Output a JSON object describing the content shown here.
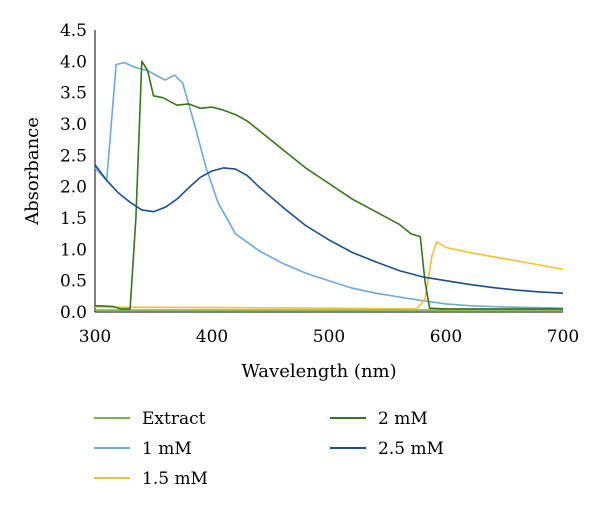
{
  "chart_data": {
    "type": "line",
    "title": "",
    "xlabel": "Wavelength (nm)",
    "ylabel": "Absorbance",
    "xlim": [
      300,
      700
    ],
    "ylim": [
      0,
      4.5
    ],
    "x_ticks": [
      300,
      400,
      500,
      600,
      700
    ],
    "y_ticks": [
      "0.0",
      "0.5",
      "1.0",
      "1.5",
      "2.0",
      "2.5",
      "3.0",
      "3.5",
      "4.0",
      "4.5"
    ],
    "grid": false,
    "legend_position": "bottom",
    "series": [
      {
        "name": "Extract",
        "color": "#7cb342",
        "points": [
          [
            300,
            0.03
          ],
          [
            400,
            0.03
          ],
          [
            500,
            0.03
          ],
          [
            600,
            0.03
          ],
          [
            700,
            0.03
          ]
        ]
      },
      {
        "name": "1 mM",
        "color": "#6fa8dc",
        "points": [
          [
            300,
            2.3
          ],
          [
            310,
            2.1
          ],
          [
            318,
            3.95
          ],
          [
            325,
            3.98
          ],
          [
            335,
            3.9
          ],
          [
            345,
            3.85
          ],
          [
            355,
            3.75
          ],
          [
            360,
            3.7
          ],
          [
            368,
            3.78
          ],
          [
            375,
            3.65
          ],
          [
            385,
            3.0
          ],
          [
            395,
            2.3
          ],
          [
            405,
            1.75
          ],
          [
            420,
            1.25
          ],
          [
            440,
            0.98
          ],
          [
            460,
            0.78
          ],
          [
            480,
            0.62
          ],
          [
            500,
            0.5
          ],
          [
            520,
            0.38
          ],
          [
            540,
            0.3
          ],
          [
            560,
            0.24
          ],
          [
            580,
            0.18
          ],
          [
            600,
            0.13
          ],
          [
            620,
            0.1
          ],
          [
            650,
            0.08
          ],
          [
            700,
            0.06
          ]
        ]
      },
      {
        "name": "1.5 mM",
        "color": "#f1c232",
        "points": [
          [
            300,
            0.08
          ],
          [
            400,
            0.07
          ],
          [
            500,
            0.06
          ],
          [
            575,
            0.05
          ],
          [
            582,
            0.2
          ],
          [
            588,
            0.9
          ],
          [
            592,
            1.12
          ],
          [
            600,
            1.03
          ],
          [
            620,
            0.95
          ],
          [
            650,
            0.85
          ],
          [
            680,
            0.75
          ],
          [
            700,
            0.68
          ]
        ]
      },
      {
        "name": "2 mM",
        "color": "#38761d",
        "points": [
          [
            300,
            0.1
          ],
          [
            315,
            0.09
          ],
          [
            322,
            0.05
          ],
          [
            330,
            0.05
          ],
          [
            335,
            1.5
          ],
          [
            340,
            4.0
          ],
          [
            345,
            3.85
          ],
          [
            350,
            3.45
          ],
          [
            358,
            3.42
          ],
          [
            365,
            3.35
          ],
          [
            370,
            3.3
          ],
          [
            380,
            3.32
          ],
          [
            390,
            3.25
          ],
          [
            400,
            3.27
          ],
          [
            410,
            3.22
          ],
          [
            420,
            3.15
          ],
          [
            430,
            3.05
          ],
          [
            440,
            2.9
          ],
          [
            460,
            2.6
          ],
          [
            480,
            2.3
          ],
          [
            500,
            2.05
          ],
          [
            520,
            1.8
          ],
          [
            540,
            1.6
          ],
          [
            560,
            1.4
          ],
          [
            570,
            1.25
          ],
          [
            578,
            1.2
          ],
          [
            582,
            0.5
          ],
          [
            586,
            0.06
          ],
          [
            600,
            0.05
          ],
          [
            650,
            0.05
          ],
          [
            700,
            0.05
          ]
        ]
      },
      {
        "name": "2.5 mM",
        "color": "#1c4f8a",
        "points": [
          [
            300,
            2.35
          ],
          [
            310,
            2.1
          ],
          [
            320,
            1.9
          ],
          [
            330,
            1.75
          ],
          [
            340,
            1.63
          ],
          [
            350,
            1.6
          ],
          [
            360,
            1.67
          ],
          [
            370,
            1.8
          ],
          [
            380,
            1.98
          ],
          [
            390,
            2.15
          ],
          [
            400,
            2.25
          ],
          [
            410,
            2.3
          ],
          [
            420,
            2.28
          ],
          [
            430,
            2.18
          ],
          [
            440,
            2.0
          ],
          [
            460,
            1.68
          ],
          [
            480,
            1.38
          ],
          [
            500,
            1.15
          ],
          [
            520,
            0.95
          ],
          [
            540,
            0.8
          ],
          [
            560,
            0.66
          ],
          [
            580,
            0.56
          ],
          [
            600,
            0.5
          ],
          [
            620,
            0.44
          ],
          [
            640,
            0.39
          ],
          [
            660,
            0.35
          ],
          [
            680,
            0.32
          ],
          [
            700,
            0.3
          ]
        ]
      }
    ]
  }
}
